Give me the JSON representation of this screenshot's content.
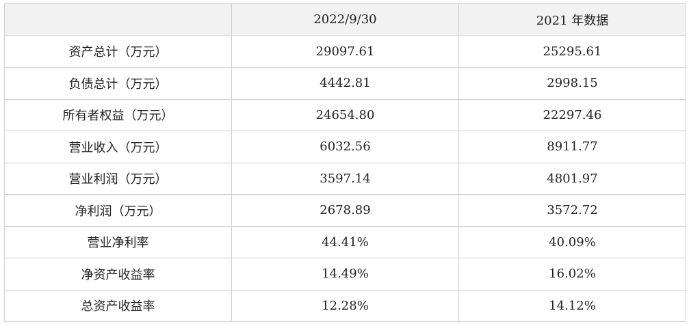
{
  "table": {
    "header": [
      "2022/9/30",
      "2021 年数据"
    ],
    "rows": [
      [
        "资产总计（万元）",
        "29097.61",
        "25295.61"
      ],
      [
        "负债总计（万元）",
        "4442.81",
        "2998.15"
      ],
      [
        "所有者权益（万元）",
        "24654.80",
        "22297.46"
      ],
      [
        "营业收入（万元）",
        "6032.56",
        "8911.77"
      ],
      [
        "营业利润（万元）",
        "3597.14",
        "4801.97"
      ],
      [
        "净利润（万元）",
        "2678.89",
        "3572.72"
      ],
      [
        "营业净利率",
        "44.41%",
        "40.09%"
      ],
      [
        "净资产收益率",
        "14.49%",
        "16.02%"
      ],
      [
        "总资产收益率",
        "12.28%",
        "14.12%"
      ]
    ]
  }
}
